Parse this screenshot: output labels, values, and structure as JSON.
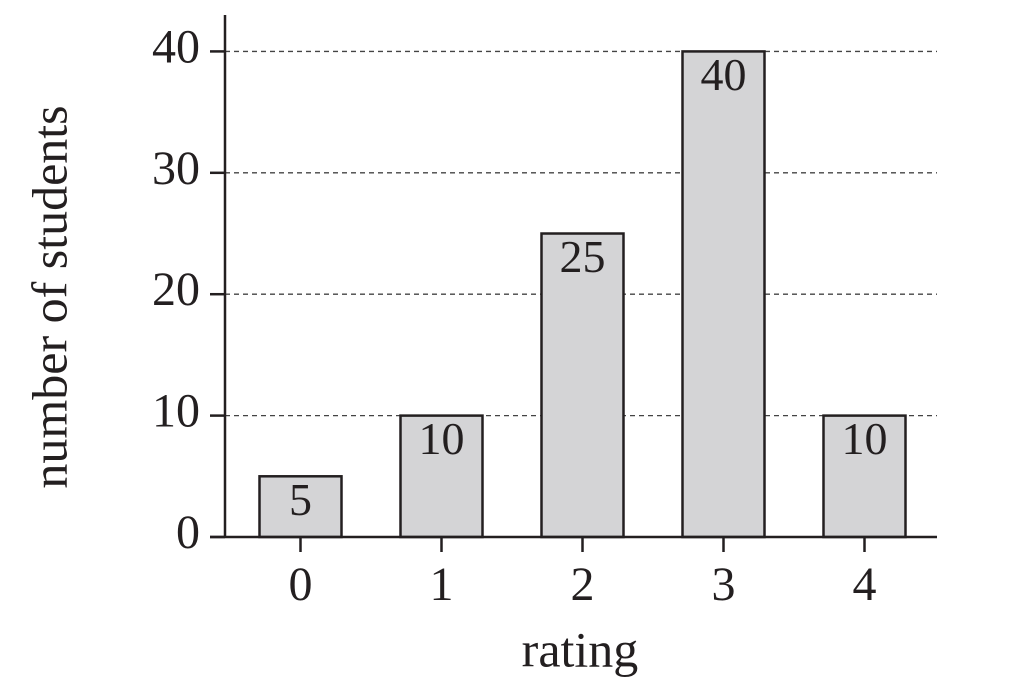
{
  "chart_data": {
    "type": "bar",
    "x_label": "rating",
    "y_label": "number of students",
    "categories": [
      "0",
      "1",
      "2",
      "3",
      "4"
    ],
    "values": [
      5,
      10,
      25,
      40,
      10
    ],
    "color": "#d4d4d6",
    "ylim": [
      0,
      43
    ],
    "yticks": [
      0,
      10,
      20,
      30,
      40
    ],
    "grid": true,
    "value_labels_inside": true
  }
}
